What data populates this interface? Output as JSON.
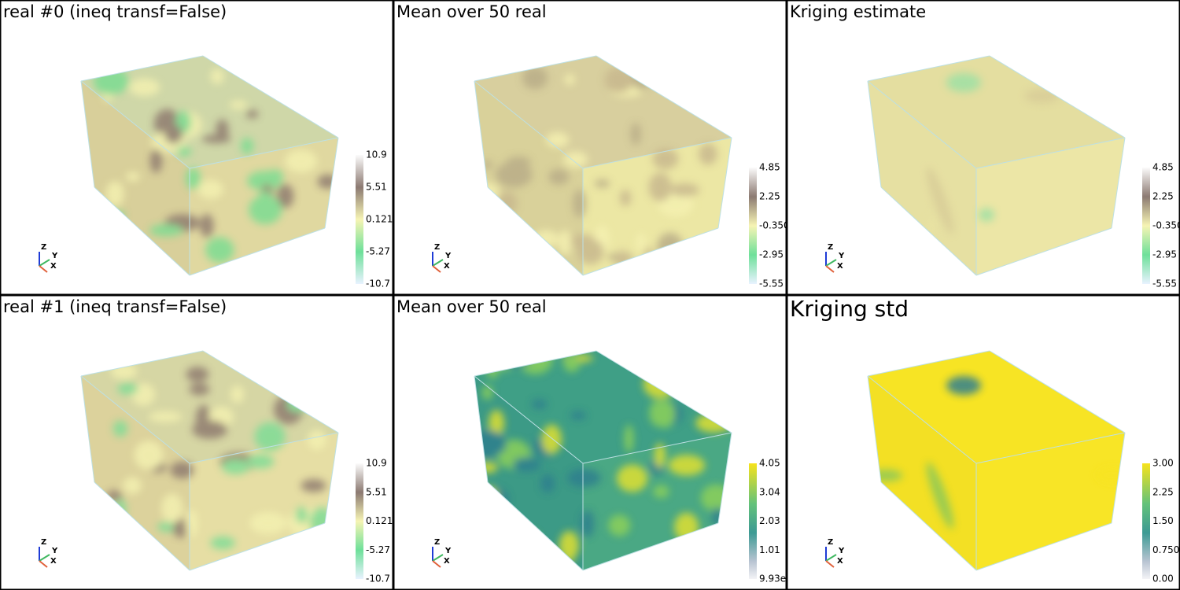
{
  "panels": [
    {
      "title": "real #0 (ineq transf=False)",
      "colorbar": [
        "10.9",
        "5.51",
        "0.121",
        "-5.27",
        "-10.7"
      ],
      "axes": [
        "Z",
        "Y",
        "X"
      ]
    },
    {
      "title": "Mean over 50 real",
      "colorbar": [
        "4.85",
        "2.25",
        "-0.350",
        "-2.95",
        "-5.55"
      ],
      "axes": [
        "Z",
        "Y",
        "X"
      ]
    },
    {
      "title": "Kriging estimate",
      "colorbar": [
        "4.85",
        "2.25",
        "-0.350",
        "-2.95",
        "-5.55"
      ],
      "axes": [
        "Z",
        "Y",
        "X"
      ]
    },
    {
      "title": "real #1 (ineq transf=False)",
      "colorbar": [
        "10.9",
        "5.51",
        "0.121",
        "-5.27",
        "-10.7"
      ],
      "axes": [
        "Z",
        "Y",
        "X"
      ]
    },
    {
      "title": "Mean over 50 real",
      "colorbar": [
        "4.05",
        "3.04",
        "2.03",
        "1.01",
        "9.93e"
      ],
      "axes": [
        "Z",
        "Y",
        "X"
      ]
    },
    {
      "title": "Kriging std",
      "colorbar": [
        "3.00",
        "2.25",
        "1.50",
        "0.750",
        "0.00"
      ],
      "axes": [
        "Z",
        "Y",
        "X"
      ]
    }
  ]
}
